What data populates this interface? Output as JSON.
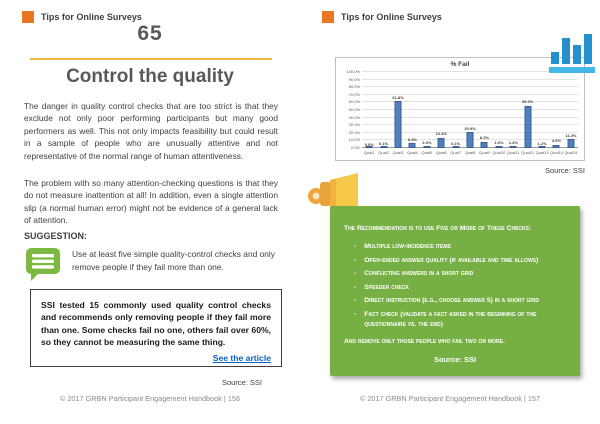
{
  "left": {
    "header_label": "Tips for Online Surveys",
    "tip_number": "65",
    "title": "Control the quality",
    "paragraph1": "The danger in quality control checks that are too strict is that they exclude not only poor performing participants but many good performers as well. This not only impacts feasibility but could result in a sample of people who are unusually attentive and not representative of the normal range of human attentiveness.",
    "paragraph2": "The problem with so many attention-checking questions is that they do not measure inattention at all! In addition, even a single attention slip (a normal human error) might not be evidence of a general lack of attention.",
    "suggestion_label": "SUGGESTION:",
    "suggestion_text": "Use at least five simple quality-control checks and only remove people if they fail more than one.",
    "callout_box": {
      "text": "SSI tested 15 commonly used quality control checks and recommends only removing people if they fail more than one. Some checks fail no one, others fail over 60%, so they cannot be measuring the same thing.",
      "link_label": "See the article"
    },
    "source": "Source: SSI",
    "footer": "© 2017 GRBN Participant Engagement Handbook | 156"
  },
  "right": {
    "header_label": "Tips for Online Surveys",
    "chart_source": "Source: SSI",
    "recommendation": {
      "intro": "The Recommendation is to use Five or More of These Checks:",
      "items": [
        "Multiple low-incidence items",
        "Open-ended answer quality (if available and time allows)",
        "Conflicting answers in a short grid",
        "Speeder check",
        "Direct instruction (e.g., choose answer 5) in a short grid",
        "Fact check (validate a fact asked in the beginning of the questionnaire vs. the end)"
      ],
      "outro": "And remove only those people who fail two or more.",
      "source": "Source: SSI"
    },
    "footer": "© 2017 GRBN Participant Engagement Handbook | 157"
  },
  "chart_data": {
    "type": "bar",
    "title": "% Fail",
    "categories": [
      "Qual1",
      "Qual2",
      "Qual3",
      "Qual4",
      "Qual5",
      "Qual6",
      "Qual7",
      "Qual8",
      "Qual9",
      "Qual10",
      "Qual11",
      "Qual12",
      "Qual13",
      "Qual14",
      "Qual15"
    ],
    "values": [
      0.0,
      0.1,
      61.8,
      6.4,
      2.0,
      13.4,
      0.1,
      20.9,
      8.3,
      1.6,
      1.4,
      55.3,
      1.2,
      4.6,
      11.4
    ],
    "labels": [
      "0.0%",
      "0.1%",
      "61.8%",
      "6.4%",
      "2.0%",
      "13.4%",
      "0.1%",
      "20.9%",
      "8.3%",
      "1.6%",
      "1.4%",
      "55.3%",
      "1.2%",
      "4.6%",
      "11.4%"
    ],
    "xlabel": "",
    "ylabel": "",
    "ylim": [
      0,
      100
    ],
    "ytick_step": 10,
    "grid": true,
    "legend": false,
    "bar_color": "#4F81BD"
  },
  "colors": {
    "accent_orange": "#E87722",
    "gold_rule": "#F2B63B",
    "heading_gray": "#595959",
    "green_box": "#76AF43",
    "icon_green": "#7DB843",
    "link_blue": "#0563C1",
    "bar_blue": "#4F81BD",
    "logo_blue": "#2491CE",
    "logo_light_blue": "#45B6E8"
  }
}
